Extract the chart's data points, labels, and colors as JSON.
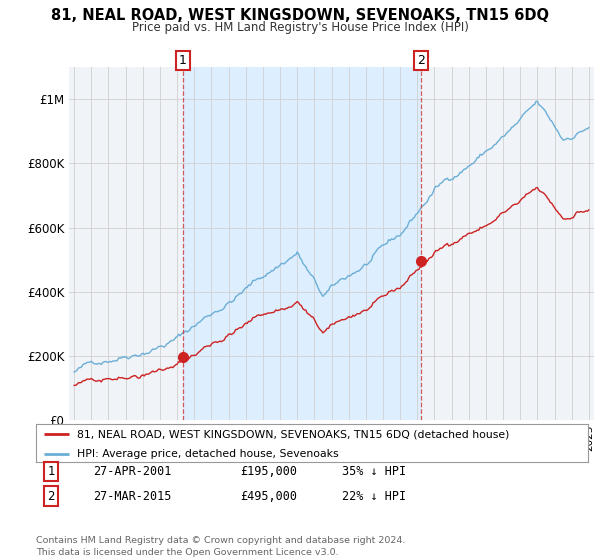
{
  "title": "81, NEAL ROAD, WEST KINGSDOWN, SEVENOAKS, TN15 6DQ",
  "subtitle": "Price paid vs. HM Land Registry's House Price Index (HPI)",
  "ylim": [
    0,
    1100000
  ],
  "yticks": [
    0,
    200000,
    400000,
    600000,
    800000,
    1000000
  ],
  "ytick_labels": [
    "£0",
    "£200K",
    "£400K",
    "£600K",
    "£800K",
    "£1M"
  ],
  "sale1_year": 2001.32,
  "sale1_price": 195000,
  "sale1_label": "1",
  "sale1_date": "27-APR-2001",
  "sale1_pct": "35% ↓ HPI",
  "sale2_year": 2015.24,
  "sale2_price": 495000,
  "sale2_label": "2",
  "sale2_date": "27-MAR-2015",
  "sale2_pct": "22% ↓ HPI",
  "hpi_color": "#6baed6",
  "price_color": "#cc2222",
  "vline_color": "#cc3333",
  "shade_color": "#ddeeff",
  "background_color": "#f0f4f8",
  "legend_label_price": "81, NEAL ROAD, WEST KINGSDOWN, SEVENOAKS, TN15 6DQ (detached house)",
  "legend_label_hpi": "HPI: Average price, detached house, Sevenoaks",
  "footer": "Contains HM Land Registry data © Crown copyright and database right 2024.\nThis data is licensed under the Open Government Licence v3.0.",
  "table_rows": [
    [
      "1",
      "27-APR-2001",
      "£195,000",
      "35% ↓ HPI"
    ],
    [
      "2",
      "27-MAR-2015",
      "£495,000",
      "22% ↓ HPI"
    ]
  ]
}
